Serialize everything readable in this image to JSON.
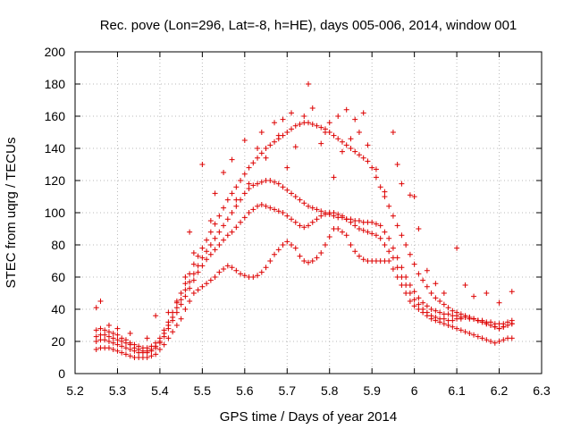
{
  "chart_data": {
    "type": "scatter",
    "title": "Rec. pove (Lon=296, Lat=-8, h=HE), days 005-006, 2014, window 001",
    "xlabel": "GPS time / Days of year 2014",
    "ylabel": "STEC from uqrg / TECUs",
    "xlim": [
      5.2,
      6.3
    ],
    "ylim": [
      0,
      200
    ],
    "x_ticks": [
      5.2,
      5.3,
      5.4,
      5.5,
      5.6,
      5.7,
      5.8,
      5.9,
      6.0,
      6.1,
      6.2,
      6.3
    ],
    "x_tick_labels": [
      "5.2",
      "5.3",
      "5.4",
      "5.5",
      "5.6",
      "5.7",
      "5.8",
      "5.9",
      "6",
      "6.1",
      "6.2",
      "6.3"
    ],
    "y_ticks": [
      0,
      20,
      40,
      60,
      80,
      100,
      120,
      140,
      160,
      180,
      200
    ],
    "y_tick_labels": [
      "0",
      "20",
      "40",
      "60",
      "80",
      "100",
      "120",
      "140",
      "160",
      "180",
      "200"
    ],
    "grid": true,
    "marker": "plus",
    "color": "#dd0000",
    "series": [
      {
        "x": [
          5.25,
          5.26,
          5.27,
          5.28,
          5.29,
          5.3,
          5.31,
          5.32,
          5.33,
          5.34,
          5.35,
          5.36,
          5.37,
          5.38,
          5.39,
          5.4,
          5.41,
          5.42,
          5.43,
          5.44,
          5.45,
          5.46,
          5.47,
          5.48,
          5.49,
          5.5,
          5.51,
          5.52,
          5.53,
          5.54,
          5.55,
          5.56,
          5.57,
          5.58,
          5.59,
          5.6,
          5.61,
          5.62,
          5.63,
          5.64,
          5.65,
          5.66,
          5.67,
          5.68,
          5.69,
          5.7,
          5.71,
          5.72,
          5.73,
          5.74,
          5.75,
          5.76,
          5.77,
          5.78,
          5.79,
          5.8,
          5.81,
          5.82,
          5.83,
          5.84,
          5.85,
          5.86,
          5.87,
          5.88,
          5.89,
          5.9,
          5.91,
          5.92,
          5.93,
          5.94,
          5.95,
          5.96,
          5.97,
          5.98,
          5.99,
          6.0,
          6.01,
          6.02,
          6.03,
          6.04,
          6.05,
          6.06,
          6.07,
          6.08,
          6.09,
          6.1,
          6.11,
          6.12,
          6.13,
          6.14,
          6.15,
          6.16,
          6.17,
          6.18,
          6.19,
          6.2,
          6.21,
          6.22,
          6.23
        ],
        "y": [
          15,
          16,
          16,
          16,
          15,
          14,
          13,
          12,
          11,
          10,
          10,
          10,
          10,
          11,
          12,
          15,
          18,
          22,
          26,
          30,
          34,
          40,
          45,
          50,
          52,
          54,
          56,
          58,
          60,
          63,
          65,
          67,
          66,
          64,
          62,
          61,
          60,
          60,
          61,
          63,
          66,
          70,
          74,
          77,
          80,
          82,
          80,
          78,
          73,
          70,
          69,
          70,
          72,
          75,
          80,
          85,
          90,
          90,
          88,
          86,
          80,
          76,
          73,
          71,
          70,
          70,
          70,
          70,
          70,
          70,
          65,
          60,
          55,
          50,
          45,
          42,
          40,
          38,
          36,
          34,
          33,
          32,
          31,
          30,
          29,
          28,
          27,
          26,
          25,
          24,
          23,
          22,
          21,
          20,
          19,
          20,
          21,
          22,
          22
        ]
      },
      {
        "x": [
          5.25,
          5.26,
          5.27,
          5.28,
          5.29,
          5.3,
          5.31,
          5.32,
          5.33,
          5.34,
          5.35,
          5.36,
          5.37,
          5.38,
          5.39,
          5.4,
          5.41,
          5.42,
          5.43,
          5.44,
          5.45,
          5.46,
          5.47,
          5.48,
          5.49,
          5.5,
          5.51,
          5.52,
          5.53,
          5.54,
          5.55,
          5.56,
          5.57,
          5.58,
          5.59,
          5.6,
          5.61,
          5.62,
          5.63,
          5.64,
          5.65,
          5.66,
          5.67,
          5.68,
          5.69,
          5.7,
          5.71,
          5.72,
          5.73,
          5.74,
          5.75,
          5.76,
          5.77,
          5.78,
          5.79,
          5.8,
          5.81,
          5.82,
          5.83,
          5.84,
          5.85,
          5.86,
          5.87,
          5.88,
          5.89,
          5.9,
          5.91,
          5.92,
          5.93,
          5.94,
          5.95,
          5.96,
          5.97,
          5.98,
          5.99,
          6.0,
          6.01,
          6.02,
          6.03,
          6.04,
          6.05,
          6.06,
          6.07,
          6.08,
          6.09,
          6.1,
          6.11,
          6.12,
          6.13,
          6.14,
          6.15,
          6.16,
          6.17,
          6.18,
          6.19,
          6.2,
          6.21,
          6.22,
          6.23
        ],
        "y": [
          20,
          21,
          21,
          20,
          19,
          18,
          17,
          16,
          15,
          14,
          13,
          13,
          13,
          14,
          16,
          19,
          23,
          28,
          33,
          38,
          43,
          48,
          53,
          58,
          63,
          67,
          71,
          74,
          77,
          80,
          83,
          86,
          88,
          91,
          94,
          97,
          100,
          102,
          104,
          105,
          104,
          103,
          102,
          101,
          100,
          98,
          96,
          94,
          92,
          91,
          92,
          94,
          96,
          98,
          99,
          100,
          100,
          99,
          98,
          96,
          94,
          92,
          90,
          89,
          88,
          87,
          86,
          84,
          80,
          76,
          72,
          66,
          60,
          55,
          50,
          46,
          43,
          40,
          38,
          36,
          35,
          34,
          34,
          33,
          33,
          34,
          34,
          35,
          35,
          34,
          33,
          32,
          31,
          30,
          29,
          28,
          29,
          30,
          31
        ]
      },
      {
        "x": [
          5.25,
          5.26,
          5.27,
          5.28,
          5.29,
          5.3,
          5.31,
          5.32,
          5.33,
          5.34,
          5.35,
          5.36,
          5.37,
          5.38,
          5.39,
          5.4,
          5.41,
          5.42,
          5.43,
          5.44,
          5.45,
          5.46,
          5.47,
          5.48,
          5.49,
          5.5,
          5.51,
          5.52,
          5.53,
          5.54,
          5.55,
          5.56,
          5.57,
          5.58,
          5.59,
          5.6,
          5.61,
          5.62,
          5.63,
          5.64,
          5.65,
          5.66,
          5.67,
          5.68,
          5.69,
          5.7,
          5.71,
          5.72,
          5.73,
          5.74,
          5.75,
          5.76,
          5.77,
          5.78,
          5.79,
          5.8,
          5.81,
          5.82,
          5.83,
          5.84,
          5.85,
          5.86,
          5.87,
          5.88,
          5.89,
          5.9,
          5.91,
          5.92,
          5.93,
          5.94,
          5.95,
          5.96,
          5.97,
          5.98,
          5.99,
          6.0,
          6.01,
          6.02,
          6.03,
          6.04,
          6.05,
          6.06,
          6.07,
          6.08,
          6.09,
          6.1,
          6.11,
          6.12,
          6.13,
          6.14,
          6.15,
          6.16,
          6.17,
          6.18,
          6.19,
          6.2,
          6.21,
          6.22,
          6.23
        ],
        "y": [
          23,
          24,
          24,
          23,
          22,
          21,
          20,
          19,
          18,
          16,
          15,
          14,
          14,
          15,
          17,
          20,
          25,
          30,
          35,
          41,
          46,
          52,
          57,
          62,
          67,
          72,
          76,
          80,
          84,
          88,
          92,
          96,
          100,
          104,
          108,
          112,
          115,
          117,
          118,
          119,
          120,
          120,
          119,
          118,
          116,
          114,
          112,
          110,
          108,
          106,
          104,
          103,
          102,
          101,
          100,
          99,
          98,
          97,
          97,
          96,
          96,
          95,
          95,
          94,
          94,
          94,
          93,
          92,
          88,
          84,
          78,
          72,
          66,
          60,
          55,
          51,
          47,
          44,
          42,
          40,
          39,
          38,
          37,
          37,
          36,
          36,
          35,
          35,
          34,
          34,
          33,
          33,
          32,
          32,
          31,
          31,
          31,
          32,
          33
        ]
      },
      {
        "x": [
          5.25,
          5.26,
          5.27,
          5.28,
          5.29,
          5.3,
          5.31,
          5.32,
          5.33,
          5.34,
          5.35,
          5.36,
          5.37,
          5.38,
          5.39,
          5.4,
          5.41,
          5.42,
          5.43,
          5.44,
          5.45,
          5.46,
          5.47,
          5.48,
          5.49,
          5.5,
          5.51,
          5.52,
          5.53,
          5.54,
          5.55,
          5.56,
          5.57,
          5.58,
          5.59,
          5.6,
          5.61,
          5.62,
          5.63,
          5.64,
          5.65,
          5.66,
          5.67,
          5.68,
          5.69,
          5.7,
          5.71,
          5.72,
          5.73,
          5.74,
          5.75,
          5.76,
          5.77,
          5.78,
          5.79,
          5.8,
          5.81,
          5.82,
          5.83,
          5.84,
          5.85,
          5.86,
          5.87,
          5.88,
          5.89,
          5.9,
          5.91,
          5.92,
          5.93,
          5.94,
          5.95,
          5.96,
          5.97,
          5.98,
          5.99,
          6.0,
          6.01,
          6.02,
          6.03,
          6.04,
          6.05,
          6.06,
          6.07,
          6.08,
          6.09,
          6.1,
          6.11,
          6.12,
          6.13,
          6.14,
          6.15,
          6.16,
          6.17,
          6.18,
          6.19,
          6.2,
          6.21,
          6.22,
          6.23
        ],
        "y": [
          27,
          28,
          27,
          26,
          25,
          24,
          22,
          21,
          19,
          18,
          17,
          16,
          16,
          17,
          19,
          22,
          27,
          32,
          38,
          44,
          50,
          56,
          62,
          68,
          73,
          78,
          83,
          88,
          93,
          98,
          103,
          108,
          112,
          116,
          120,
          124,
          128,
          131,
          134,
          137,
          140,
          142,
          144,
          146,
          148,
          150,
          152,
          154,
          155,
          156,
          156,
          155,
          154,
          153,
          152,
          150,
          148,
          146,
          144,
          142,
          140,
          138,
          136,
          134,
          132,
          128,
          122,
          116,
          110,
          104,
          98,
          92,
          86,
          80,
          74,
          68,
          62,
          58,
          54,
          50,
          47,
          45,
          43,
          41,
          39,
          38,
          37,
          36,
          35,
          34,
          33,
          32,
          31,
          30,
          29,
          28,
          29,
          30,
          31
        ]
      },
      {
        "x": [
          5.25,
          5.26,
          5.28,
          5.3,
          5.33,
          5.37,
          5.39,
          5.42,
          5.44,
          5.46,
          5.47,
          5.48,
          5.5,
          5.52,
          5.53,
          5.55,
          5.57,
          5.58,
          5.6,
          5.61,
          5.63,
          5.64,
          5.65,
          5.67,
          5.68,
          5.69,
          5.7,
          5.71,
          5.72,
          5.73,
          5.74,
          5.75,
          5.76,
          5.78,
          5.79,
          5.8,
          5.81,
          5.82,
          5.83,
          5.84,
          5.85,
          5.86,
          5.87,
          5.88,
          5.89,
          5.91,
          5.93,
          5.95,
          5.96,
          5.97,
          5.99,
          6.0,
          6.01,
          6.03,
          6.05,
          6.07,
          6.1,
          6.12,
          6.14,
          6.17,
          6.2,
          6.23
        ],
        "y": [
          41,
          45,
          30,
          28,
          25,
          22,
          36,
          38,
          45,
          60,
          88,
          75,
          130,
          95,
          112,
          125,
          133,
          108,
          145,
          118,
          140,
          150,
          134,
          156,
          148,
          158,
          128,
          162,
          141,
          155,
          160,
          180,
          165,
          143,
          150,
          156,
          122,
          160,
          138,
          164,
          146,
          158,
          150,
          162,
          142,
          127,
          113,
          150,
          130,
          118,
          111,
          110,
          90,
          64,
          56,
          50,
          78,
          55,
          48,
          50,
          44,
          51
        ]
      }
    ]
  }
}
